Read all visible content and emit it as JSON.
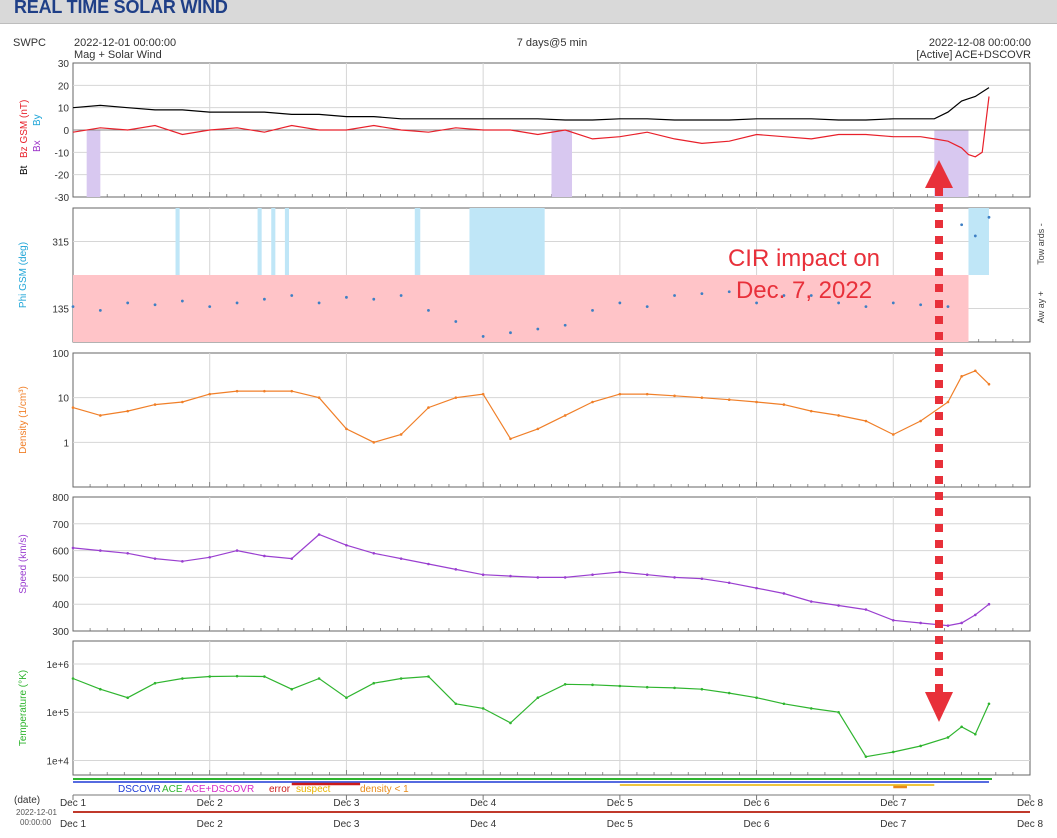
{
  "page": {
    "title": "REAL TIME SOLAR WIND"
  },
  "header": {
    "agency": "SWPC",
    "start": "2022-12-01 00:00:00",
    "start_sub": "Mag + Solar Wind",
    "span": "7 days@5 min",
    "end": "2022-12-08 00:00:00",
    "end_sub": "[Active] ACE+DSCOVR"
  },
  "colors": {
    "bt": "#000000",
    "bz": "#e8202a",
    "bx": "#9a30c8",
    "by": "#21a6d8",
    "phi_away_band": "#ffc4c8",
    "phi_toward_band": "#bfe6f7",
    "density": "#f07f28",
    "speed": "#9a3fd0",
    "temperature": "#2fb52f",
    "southward_shade": "#d8c8f0",
    "annotation": "#e8303a"
  },
  "chart_data": [
    {
      "type": "line",
      "title": "",
      "ylabel_parts": [
        "Bt",
        "Bz GSM (nT)",
        "Bx",
        "By"
      ],
      "ylim": [
        -30,
        30
      ],
      "yticks": [
        "30",
        "20",
        "10",
        "0",
        "-10",
        "-20",
        "-30"
      ],
      "grid": true,
      "x": [
        0,
        0.2,
        0.4,
        0.6,
        0.8,
        1,
        1.2,
        1.4,
        1.6,
        1.8,
        2,
        2.2,
        2.4,
        2.6,
        2.8,
        3,
        3.2,
        3.4,
        3.6,
        3.8,
        4,
        4.2,
        4.4,
        4.6,
        4.8,
        5,
        5.2,
        5.4,
        5.6,
        5.8,
        6,
        6.2,
        6.3,
        6.4,
        6.5,
        6.55,
        6.6,
        6.65,
        6.7
      ],
      "series": [
        {
          "name": "Bt",
          "values": [
            10,
            11,
            10,
            9,
            9,
            8,
            8,
            8,
            7,
            7,
            6,
            6,
            5,
            5,
            5,
            5,
            5,
            5,
            4.5,
            4.5,
            5,
            5,
            4.5,
            4.5,
            4.5,
            5,
            5,
            5,
            4.5,
            4.5,
            5,
            5,
            5,
            8,
            13,
            14,
            15,
            17,
            19
          ]
        },
        {
          "name": "Bz GSM",
          "values": [
            -1,
            1,
            0,
            2,
            -2,
            0,
            1,
            -1,
            2,
            0,
            0,
            2,
            0,
            -1,
            1,
            0,
            0,
            -2,
            0,
            -4,
            -3,
            -1,
            -4,
            -6,
            -5,
            -2,
            -3,
            -4,
            -2,
            -2,
            -3,
            -3,
            -4,
            -5,
            -8,
            -11,
            -12,
            -10,
            15
          ]
        }
      ]
    },
    {
      "type": "scatter",
      "title": "",
      "ylabel": "Phi GSM (deg)",
      "ylim": [
        45,
        405
      ],
      "yticks": [
        "315",
        "135"
      ],
      "grid": true,
      "side_labels": [
        "Tow ards -",
        "Aw ay +"
      ],
      "x": [
        0,
        0.2,
        0.4,
        0.6,
        0.8,
        1,
        1.2,
        1.4,
        1.6,
        1.8,
        2,
        2.2,
        2.4,
        2.6,
        2.8,
        3,
        3.2,
        3.4,
        3.6,
        3.8,
        4,
        4.2,
        4.4,
        4.6,
        4.8,
        5,
        5.2,
        5.4,
        5.6,
        5.8,
        6,
        6.2,
        6.4,
        6.5,
        6.6,
        6.7
      ],
      "values": [
        140,
        130,
        150,
        145,
        155,
        140,
        150,
        160,
        170,
        150,
        165,
        160,
        170,
        130,
        100,
        60,
        70,
        80,
        90,
        130,
        150,
        140,
        170,
        175,
        180,
        150,
        170,
        170,
        150,
        140,
        150,
        145,
        140,
        360,
        330,
        380
      ]
    },
    {
      "type": "line",
      "title": "",
      "scale": "log",
      "ylabel": "Density (1/cm³)",
      "ylim": [
        0.1,
        100
      ],
      "yticks": [
        "100",
        "10",
        "1"
      ],
      "grid": true,
      "x": [
        0,
        0.2,
        0.4,
        0.6,
        0.8,
        1,
        1.2,
        1.4,
        1.6,
        1.8,
        2,
        2.2,
        2.4,
        2.6,
        2.8,
        3,
        3.2,
        3.4,
        3.6,
        3.8,
        4,
        4.2,
        4.4,
        4.6,
        4.8,
        5,
        5.2,
        5.4,
        5.6,
        5.8,
        6,
        6.2,
        6.4,
        6.5,
        6.6,
        6.7
      ],
      "values": [
        6,
        4,
        5,
        7,
        8,
        12,
        14,
        14,
        14,
        10,
        2,
        1,
        1.5,
        6,
        10,
        12,
        1.2,
        2,
        4,
        8,
        12,
        12,
        11,
        10,
        9,
        8,
        7,
        5,
        4,
        3,
        1.5,
        3,
        8,
        30,
        40,
        20
      ]
    },
    {
      "type": "line",
      "title": "",
      "ylabel": "Speed (km/s)",
      "ylim": [
        300,
        800
      ],
      "yticks": [
        "800",
        "700",
        "600",
        "500",
        "400",
        "300"
      ],
      "grid": true,
      "x": [
        0,
        0.2,
        0.4,
        0.6,
        0.8,
        1,
        1.2,
        1.4,
        1.6,
        1.8,
        2,
        2.2,
        2.4,
        2.6,
        2.8,
        3,
        3.2,
        3.4,
        3.6,
        3.8,
        4,
        4.2,
        4.4,
        4.6,
        4.8,
        5,
        5.2,
        5.4,
        5.6,
        5.8,
        6,
        6.2,
        6.4,
        6.5,
        6.6,
        6.7
      ],
      "values": [
        610,
        600,
        590,
        570,
        560,
        575,
        600,
        580,
        570,
        660,
        620,
        590,
        570,
        550,
        530,
        510,
        505,
        500,
        500,
        510,
        520,
        510,
        500,
        495,
        480,
        460,
        440,
        410,
        395,
        380,
        340,
        330,
        320,
        330,
        360,
        400
      ]
    },
    {
      "type": "line",
      "title": "",
      "scale": "log",
      "ylabel": "Temperature (°K)",
      "ylim": [
        5000,
        3000000
      ],
      "yticks": [
        "1e+6",
        "1e+5",
        "1e+4"
      ],
      "grid": true,
      "x": [
        0,
        0.2,
        0.4,
        0.6,
        0.8,
        1,
        1.2,
        1.4,
        1.6,
        1.8,
        2,
        2.2,
        2.4,
        2.6,
        2.8,
        3,
        3.2,
        3.4,
        3.6,
        3.8,
        4,
        4.2,
        4.4,
        4.6,
        4.8,
        5,
        5.2,
        5.4,
        5.6,
        5.8,
        6,
        6.2,
        6.4,
        6.5,
        6.6,
        6.7
      ],
      "values": [
        500000,
        300000,
        200000,
        400000,
        500000,
        550000,
        560000,
        550000,
        300000,
        500000,
        200000,
        400000,
        500000,
        550000,
        150000,
        120000,
        60000,
        200000,
        380000,
        370000,
        350000,
        330000,
        320000,
        300000,
        250000,
        200000,
        150000,
        120000,
        100000,
        12000,
        15000,
        20000,
        30000,
        50000,
        35000,
        150000
      ]
    }
  ],
  "shading": {
    "southward": [
      [
        0.1,
        0.2
      ],
      [
        3.5,
        3.65
      ],
      [
        6.3,
        6.55
      ]
    ],
    "phi_toward": [
      [
        0.75,
        0.78
      ],
      [
        1.35,
        1.38
      ],
      [
        1.45,
        1.48
      ],
      [
        1.55,
        1.58
      ],
      [
        2.5,
        2.54
      ],
      [
        2.9,
        3.45
      ],
      [
        6.55,
        6.7
      ]
    ]
  },
  "annotation": {
    "line1": "CIR impact on",
    "line2": "Dec. 7, 2022"
  },
  "xaxis": {
    "date_label": "(date)",
    "ticks": [
      "Dec 1",
      "Dec 2",
      "Dec 3",
      "Dec 4",
      "Dec 5",
      "Dec 6",
      "Dec 7",
      "Dec 8"
    ],
    "footer_date": "2022-12-01",
    "footer_time": "00:00:00"
  },
  "legend": [
    {
      "label": "DSCOVR",
      "color": "#1e3ad6"
    },
    {
      "label": "ACE",
      "color": "#2fb52f"
    },
    {
      "label": "ACE+DSCOVR",
      "color": "#d62cc8"
    },
    {
      "label": "error",
      "color": "#cc1a1a"
    },
    {
      "label": "suspect",
      "color": "#e8b400"
    },
    {
      "label": "density < 1",
      "color": "#e88a18"
    }
  ]
}
